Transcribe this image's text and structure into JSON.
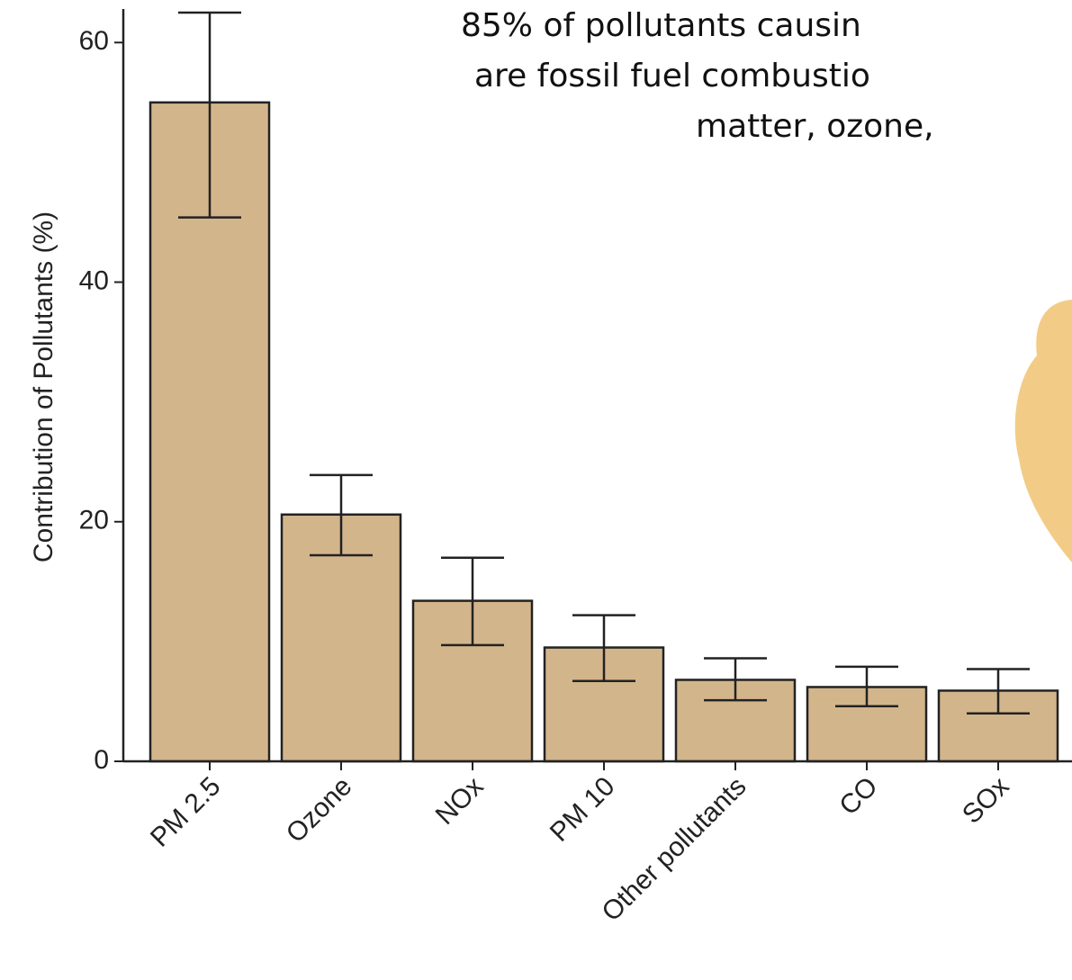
{
  "chart_data": {
    "type": "bar",
    "ylabel": "Contribution of Pollutants (%)",
    "annotations": [
      "85% of pollutants causin",
      "are fossil fuel combustio",
      "matter, ozone,"
    ],
    "categories": [
      "PM 2.5",
      "Ozone",
      "NOx",
      "PM 10",
      "Other pollutants",
      "CO",
      "SOx"
    ],
    "values": [
      55.0,
      20.6,
      13.4,
      9.5,
      6.8,
      6.2,
      5.9
    ],
    "error_lower": [
      45.4,
      17.2,
      9.7,
      6.7,
      5.1,
      4.6,
      4.0
    ],
    "error_upper": [
      62.5,
      23.9,
      17.0,
      12.2,
      8.6,
      7.9,
      7.7
    ],
    "color": "#d3b58c",
    "ylim": [
      0,
      62.8
    ],
    "yticks": [
      0,
      20,
      40,
      60
    ]
  }
}
